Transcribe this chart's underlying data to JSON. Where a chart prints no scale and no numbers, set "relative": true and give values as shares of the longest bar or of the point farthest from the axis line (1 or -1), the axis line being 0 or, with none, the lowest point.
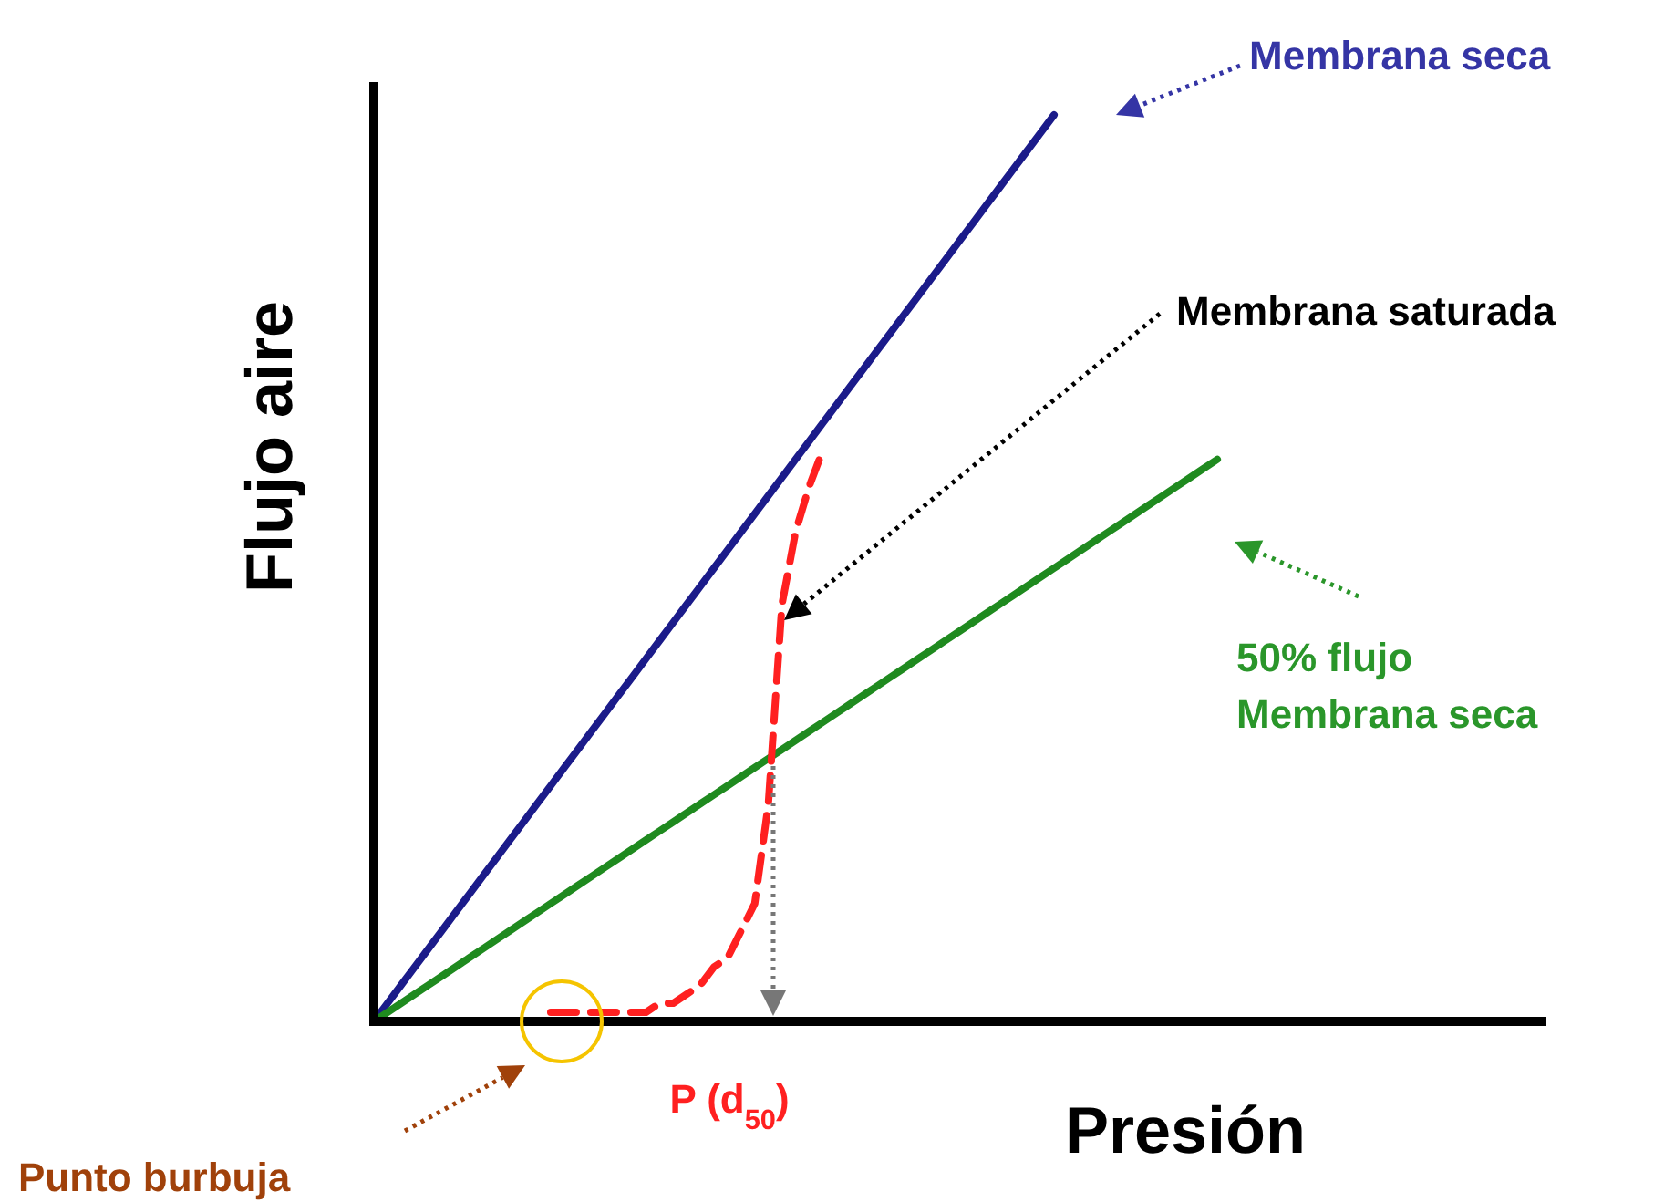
{
  "chart_data": {
    "type": "line",
    "relative": true,
    "xlabel": "Presión",
    "ylabel": "Flujo aire",
    "marker": "none",
    "categories": [
      null,
      null,
      null,
      null,
      null,
      null,
      null,
      null,
      null,
      null,
      null,
      null,
      null,
      null,
      null,
      null,
      null,
      null,
      null,
      null,
      null,
      null,
      null,
      null,
      null,
      null,
      null,
      null,
      null,
      null,
      null,
      null,
      null,
      null,
      null,
      null,
      null,
      null,
      null,
      null,
      null,
      null,
      null,
      null,
      null,
      null,
      null,
      null,
      null,
      null,
      null,
      null,
      null,
      null,
      null,
      null,
      null,
      null,
      null,
      null,
      null,
      null,
      null,
      null,
      null,
      null,
      null,
      null,
      null,
      null,
      null,
      null,
      null,
      null,
      null,
      null,
      null,
      null,
      null,
      null,
      null,
      null,
      null,
      null,
      null,
      null,
      null
    ],
    "series": [
      {
        "name": "Membrana seca",
        "color": "#1b1b8a",
        "values": [
          0,
          0.02,
          0.04,
          0.06,
          0.08,
          0.1,
          0.12,
          0.14,
          0.16,
          0.18,
          0.2,
          0.22,
          0.24,
          0.26,
          0.28,
          0.3,
          0.32,
          0.34,
          0.36,
          0.38,
          0.4,
          0.42,
          0.44,
          0.46,
          0.48,
          0.5,
          0.52,
          0.54,
          0.56,
          0.58,
          0.6,
          0.62,
          0.64,
          0.66,
          0.68,
          0.7,
          0.72,
          0.74,
          0.76,
          0.78,
          0.8,
          0.82,
          0.84,
          0.86,
          0.88,
          0.9,
          0.92,
          0.94,
          0.96,
          0.98,
          1,
          null,
          null,
          null,
          null,
          null,
          null,
          null,
          null,
          null,
          null,
          null,
          null,
          null,
          null,
          null,
          null,
          null,
          null,
          null,
          null,
          null,
          null,
          null,
          null,
          null,
          null,
          null,
          null,
          null,
          null,
          null,
          null,
          null,
          null,
          null,
          null
        ]
      },
      {
        "name": "50% flujo\nMembrana seca",
        "color": "#1f8a1f",
        "values": [
          0,
          0.01,
          0.02,
          0.03,
          0.04,
          0.05,
          0.06,
          0.07,
          0.08,
          0.09,
          0.1,
          0.11,
          0.12,
          0.13,
          0.14,
          0.15,
          0.16,
          0.17,
          0.18,
          0.19,
          0.2,
          0.21,
          0.22,
          0.23,
          0.24,
          0.25,
          0.26,
          0.27,
          0.28,
          0.29,
          0.3,
          0.31,
          0.32,
          0.33,
          0.34,
          0.35,
          0.36,
          0.37,
          0.38,
          0.39,
          0.4,
          0.41,
          0.42,
          0.43,
          0.44,
          0.45,
          0.46,
          0.47,
          0.48,
          0.49,
          0.5,
          0.51,
          0.52,
          0.53,
          0.54,
          0.55,
          0.56,
          0.57,
          0.58,
          0.59,
          0.6,
          0.61,
          0.62,
          null,
          null,
          null,
          null,
          null,
          null,
          null,
          null,
          null,
          null,
          null,
          null,
          null,
          null,
          null,
          null,
          null,
          null,
          null,
          null,
          null,
          null,
          null,
          null
        ]
      },
      {
        "name": "Membrana saturada",
        "color": "#ff2020",
        "line_style": "dashed",
        "values": [
          null,
          null,
          null,
          null,
          null,
          null,
          null,
          null,
          null,
          null,
          null,
          null,
          null,
          0.01,
          0.01,
          0.01,
          0.01,
          0.01,
          0.01,
          0.01,
          0.01,
          0.02,
          0.02,
          0.03,
          0.04,
          0.06,
          0.07,
          0.1,
          0.13,
          0.24,
          0.46,
          0.54,
          0.59,
          0.63,
          null,
          null,
          null,
          null,
          null,
          null,
          null,
          null,
          null,
          null,
          null,
          null,
          null,
          null,
          null,
          null,
          null,
          null,
          null,
          null,
          null,
          null,
          null,
          null,
          null,
          null,
          null,
          null,
          null,
          null,
          null,
          null,
          null,
          null,
          null,
          null,
          null,
          null,
          null,
          null,
          null,
          null,
          null,
          null,
          null,
          null,
          null,
          null,
          null,
          null,
          null,
          null,
          null
        ]
      }
    ],
    "annotations": [
      "P (d$_{50}$)",
      "Punto burbuja"
    ]
  }
}
